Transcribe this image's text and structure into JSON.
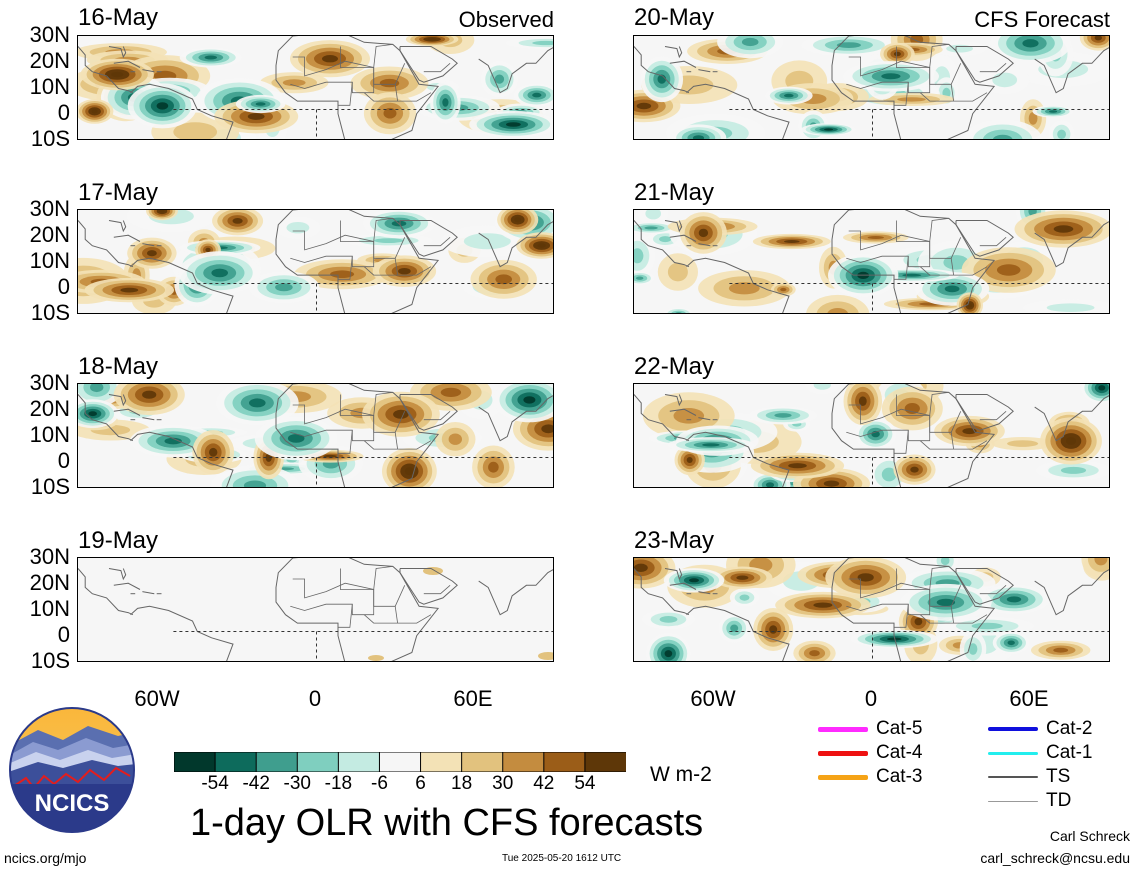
{
  "panels": [
    {
      "date": "16-May",
      "header": "Observed",
      "seed": 11
    },
    {
      "date": "17-May",
      "header": "",
      "seed": 23
    },
    {
      "date": "18-May",
      "header": "",
      "seed": 37
    },
    {
      "date": "19-May",
      "header": "",
      "seed": 0
    },
    {
      "date": "20-May",
      "header": "CFS Forecast",
      "seed": 53
    },
    {
      "date": "21-May",
      "header": "",
      "seed": 67
    },
    {
      "date": "22-May",
      "header": "",
      "seed": 79
    },
    {
      "date": "23-May",
      "header": "",
      "seed": 97
    }
  ],
  "lat_labels": [
    "30N",
    "20N",
    "10N",
    "0",
    "10S"
  ],
  "lon_labels": [
    "60W",
    "0",
    "60E"
  ],
  "colorbar": {
    "labels": [
      "-54",
      "-42",
      "-30",
      "-18",
      "-6",
      "6",
      "18",
      "30",
      "42",
      "54"
    ],
    "colors": [
      "#01382c",
      "#0d6b5c",
      "#3f9e8e",
      "#7fcfbf",
      "#c4ebe2",
      "#f6f6f6",
      "#f3e2b6",
      "#e2c27e",
      "#c48c3f",
      "#9b5d18",
      "#5e3708"
    ],
    "units": "W m-2"
  },
  "storm_legend": [
    {
      "label": "Cat-5",
      "color": "#ff2bff",
      "width": 5
    },
    {
      "label": "Cat-4",
      "color": "#ee1111",
      "width": 5
    },
    {
      "label": "Cat-3",
      "color": "#f5a316",
      "width": 5
    },
    {
      "label": "Cat-2",
      "color": "#1010dd",
      "width": 4
    },
    {
      "label": "Cat-1",
      "color": "#22eeee",
      "width": 3
    },
    {
      "label": "TS",
      "color": "#555555",
      "width": 2
    },
    {
      "label": "TD",
      "color": "#999999",
      "width": 1
    }
  ],
  "main_title": "1-day OLR with CFS forecasts",
  "logo_text": "NCICS",
  "website": "ncics.org/mjo",
  "timestamp": "Tue 2025-05-20 1612 UTC",
  "author_name": "Carl Schreck",
  "author_email": "carl_schreck@ncsu.edu"
}
